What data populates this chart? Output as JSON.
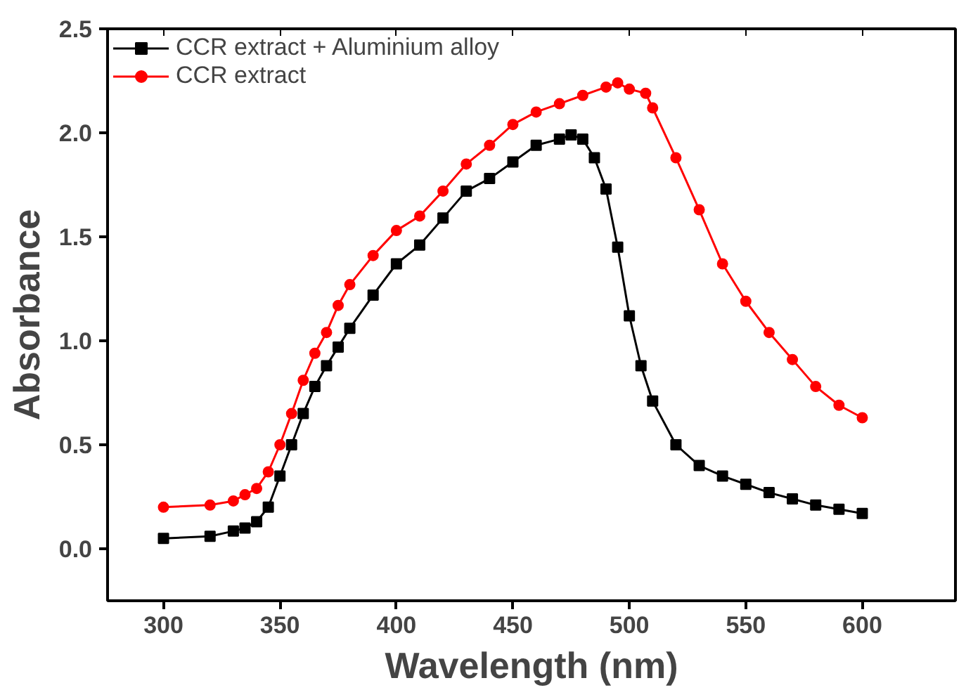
{
  "chart_data": {
    "type": "line",
    "xlabel": "Wavelength (nm)",
    "ylabel": "Absorbance",
    "xlim": [
      276,
      640
    ],
    "ylim": [
      -0.25,
      2.5
    ],
    "xticks": [
      300,
      350,
      400,
      450,
      500,
      550,
      600
    ],
    "yticks": [
      {
        "value": 0,
        "label": "0.0"
      },
      0.5,
      {
        "value": 1,
        "label": "1.0"
      },
      1.5,
      {
        "value": 2,
        "label": "2.0"
      },
      2.5
    ],
    "grid": false,
    "legend": "top left",
    "line_style": "solid",
    "series": [
      {
        "name": "CCR extract + Aluminium alloy",
        "color": "#000000",
        "marker": "square",
        "x": [
          300,
          320,
          330,
          335,
          340,
          345,
          350,
          355,
          360,
          365,
          370,
          375,
          380,
          390,
          400,
          410,
          420,
          430,
          440,
          450,
          460,
          470,
          475,
          480,
          485,
          490,
          495,
          500,
          505,
          510,
          520,
          530,
          540,
          550,
          560,
          570,
          580,
          590,
          600
        ],
        "values": [
          0.05,
          0.06,
          0.085,
          0.1,
          0.13,
          0.2,
          0.35,
          0.5,
          0.65,
          0.78,
          0.88,
          0.97,
          1.06,
          1.22,
          1.37,
          1.46,
          1.59,
          1.72,
          1.78,
          1.86,
          1.94,
          1.97,
          1.99,
          1.97,
          1.88,
          1.73,
          1.45,
          1.12,
          0.88,
          0.71,
          0.5,
          0.4,
          0.35,
          0.31,
          0.27,
          0.24,
          0.21,
          0.19,
          0.17
        ]
      },
      {
        "name": "CCR extract",
        "color": "#ff0000",
        "marker": "circle",
        "x": [
          300,
          320,
          330,
          335,
          340,
          345,
          350,
          355,
          360,
          365,
          370,
          375,
          380,
          390,
          400,
          410,
          420,
          430,
          440,
          450,
          460,
          470,
          480,
          490,
          495,
          500,
          507,
          510,
          520,
          530,
          540,
          550,
          560,
          570,
          580,
          590,
          600
        ],
        "values": [
          0.2,
          0.21,
          0.23,
          0.26,
          0.29,
          0.37,
          0.5,
          0.65,
          0.81,
          0.94,
          1.04,
          1.17,
          1.27,
          1.41,
          1.53,
          1.6,
          1.72,
          1.85,
          1.94,
          2.04,
          2.1,
          2.14,
          2.18,
          2.22,
          2.24,
          2.21,
          2.19,
          2.12,
          1.88,
          1.63,
          1.37,
          1.19,
          1.04,
          0.91,
          0.78,
          0.69,
          0.63
        ]
      }
    ]
  }
}
